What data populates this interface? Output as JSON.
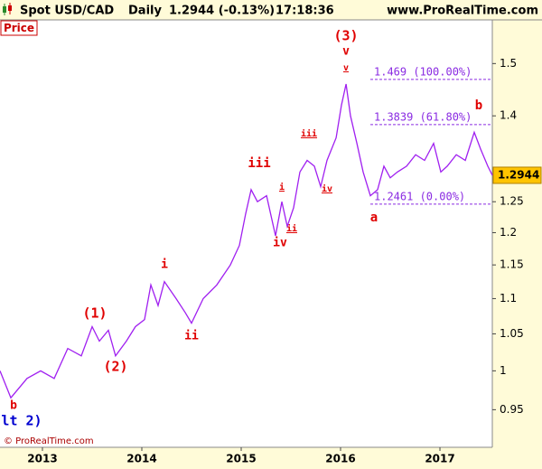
{
  "header": {
    "symbol": "Spot USD/CAD",
    "period": "Daily",
    "last": "1.2944 (-0.13%)",
    "time": "17:18:36",
    "site": "www.ProRealTime.com"
  },
  "panel_label": "Price",
  "copyright": "© ProRealTime.com",
  "chart_data": {
    "type": "line",
    "log_scale": true,
    "grid": false,
    "xlim": [
      2012.573,
      2017.527
    ],
    "xticks": [
      2013,
      2014,
      2015,
      2016,
      2017
    ],
    "ylim": [
      0.904,
      1.589
    ],
    "yticks": [
      0.95,
      1,
      1.05,
      1.1,
      1.15,
      1.2,
      1.25,
      1.4,
      1.5
    ],
    "series": [
      {
        "name": "Spot USD/CAD",
        "color": "#a020f0",
        "x": [
          2012.573,
          2012.682,
          2012.845,
          2012.982,
          2013.118,
          2013.255,
          2013.391,
          2013.5,
          2013.573,
          2013.664,
          2013.736,
          2013.845,
          2013.936,
          2014.027,
          2014.091,
          2014.164,
          2014.227,
          2014.345,
          2014.436,
          2014.5,
          2014.618,
          2014.755,
          2014.891,
          2014.982,
          2015.045,
          2015.1,
          2015.164,
          2015.255,
          2015.345,
          2015.409,
          2015.464,
          2015.527,
          2015.591,
          2015.664,
          2015.736,
          2015.8,
          2015.864,
          2015.955,
          2016.009,
          2016.055,
          2016.1,
          2016.164,
          2016.227,
          2016.3,
          2016.373,
          2016.436,
          2016.5,
          2016.573,
          2016.664,
          2016.755,
          2016.845,
          2016.936,
          2017.009,
          2017.073,
          2017.164,
          2017.255,
          2017.345,
          2017.409,
          2017.482,
          2017.527
        ],
        "values": [
          1.0,
          0.965,
          0.99,
          1.0,
          0.99,
          1.03,
          1.02,
          1.06,
          1.04,
          1.055,
          1.02,
          1.04,
          1.06,
          1.07,
          1.12,
          1.09,
          1.125,
          1.1,
          1.08,
          1.065,
          1.1,
          1.12,
          1.15,
          1.18,
          1.23,
          1.27,
          1.25,
          1.26,
          1.195,
          1.25,
          1.21,
          1.24,
          1.3,
          1.32,
          1.31,
          1.275,
          1.32,
          1.36,
          1.42,
          1.46,
          1.4,
          1.35,
          1.3,
          1.26,
          1.27,
          1.31,
          1.29,
          1.3,
          1.31,
          1.33,
          1.32,
          1.35,
          1.3,
          1.31,
          1.33,
          1.32,
          1.37,
          1.34,
          1.31,
          1.2944
        ]
      }
    ],
    "fib_levels": [
      {
        "value": 1.469,
        "label": "1.469 (100.00%)"
      },
      {
        "value": 1.3839,
        "label": "1.3839 (61.80%)"
      },
      {
        "value": 1.2461,
        "label": "1.2461 (0.00%)"
      }
    ],
    "annotations": [
      "(3)",
      "v",
      "v",
      "b",
      "iii",
      "iii",
      "i",
      "ii",
      "iv",
      "iv",
      "a",
      "i",
      "ii",
      "(1)",
      "(2)",
      "b",
      "lt 2)"
    ]
  }
}
